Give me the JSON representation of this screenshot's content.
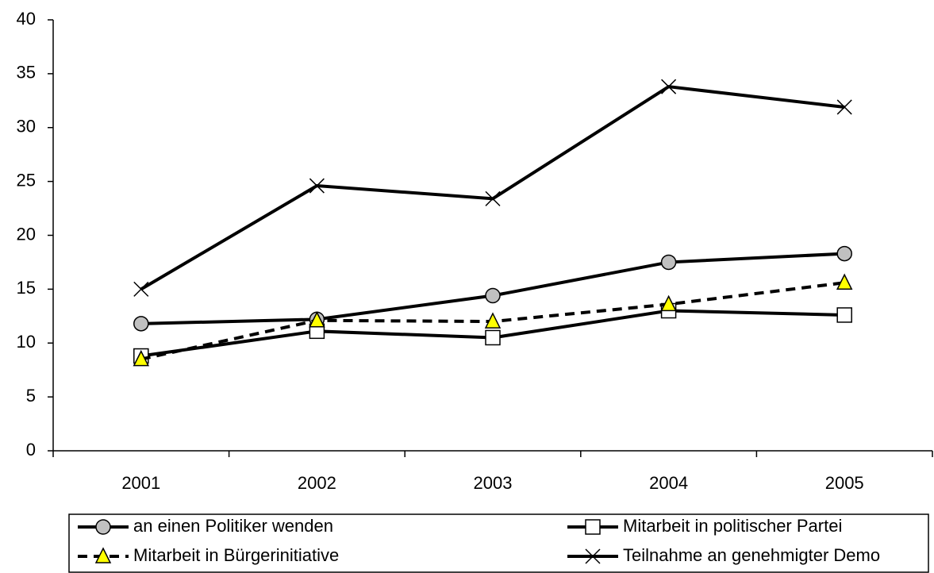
{
  "chart_data": {
    "type": "line",
    "categories": [
      "2001",
      "2002",
      "2003",
      "2004",
      "2005"
    ],
    "series": [
      {
        "name": "an einen Politiker wenden",
        "color": "#c0c0c0",
        "marker": "circle",
        "dash": false,
        "values": [
          11.8,
          12.2,
          14.4,
          17.5,
          18.3
        ]
      },
      {
        "name": "Mitarbeit in politischer Partei",
        "color": "#ffffff",
        "marker": "square",
        "dash": false,
        "values": [
          8.8,
          11.1,
          10.5,
          13.0,
          12.6
        ]
      },
      {
        "name": "Mitarbeit in Bürgerinitiative",
        "color": "#ffff00",
        "marker": "triangle",
        "dash": true,
        "values": [
          8.5,
          12.1,
          12.0,
          13.6,
          15.6
        ]
      },
      {
        "name": "Teilnahme an genehmigter Demo",
        "color": "#000000",
        "marker": "x",
        "dash": false,
        "values": [
          15.0,
          24.6,
          23.4,
          33.8,
          31.9
        ]
      }
    ],
    "ylim": [
      0,
      40
    ],
    "yticks": [
      0,
      5,
      10,
      15,
      20,
      25,
      30,
      35,
      40
    ],
    "grid": false,
    "legend": "bottom"
  }
}
